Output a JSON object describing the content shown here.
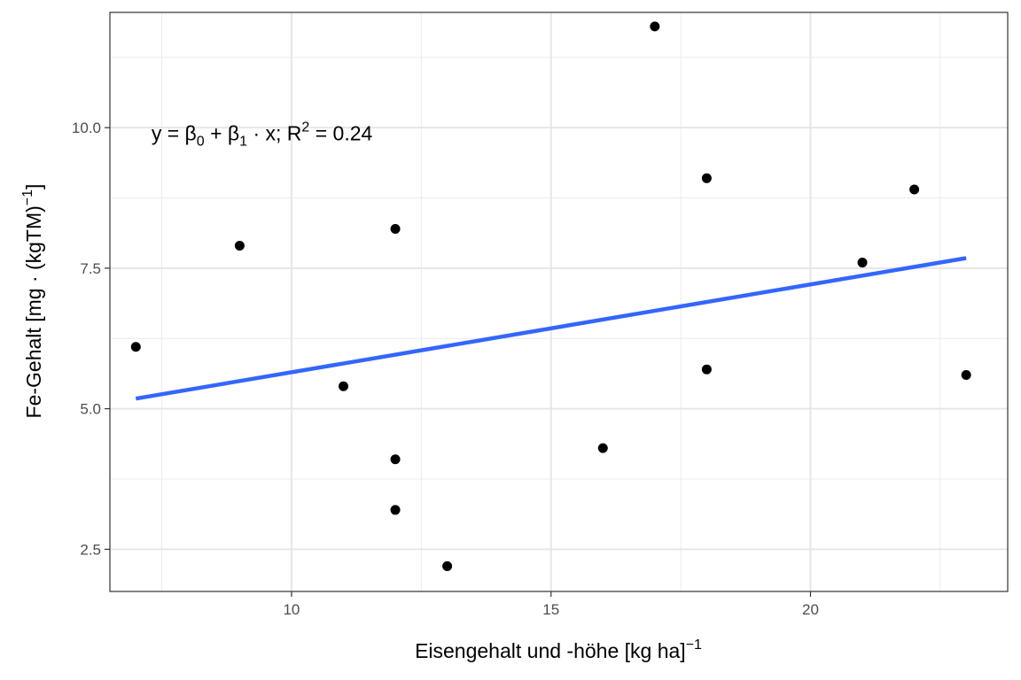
{
  "chart_data": {
    "type": "scatter",
    "xlabel_main": "Eisengehalt und -höhe [kg ha]",
    "xlabel_sup": "−1",
    "ylabel_main": "Fe-Gehalt [mg · (kgTM)",
    "ylabel_sup": "−1",
    "ylabel_end": "]",
    "annotation": {
      "lhs": "y = β",
      "sub0": "0",
      "mid": " + β",
      "sub1": "1",
      "rhs": " · x;  R",
      "sup": "2",
      "tail": " = 0.24",
      "x": 7.3,
      "y": 9.9
    },
    "xlim": [
      6.5,
      23.8
    ],
    "ylim": [
      1.75,
      12.05
    ],
    "x_ticks": [
      10,
      15,
      20
    ],
    "x_tick_labels": [
      "10",
      "15",
      "20"
    ],
    "y_ticks": [
      2.5,
      5.0,
      7.5,
      10.0
    ],
    "y_tick_labels": [
      "2.5",
      "5.0",
      "7.5",
      "10.0"
    ],
    "grid": true,
    "points": [
      {
        "x": 7,
        "y": 6.1
      },
      {
        "x": 9,
        "y": 7.9
      },
      {
        "x": 11,
        "y": 5.4
      },
      {
        "x": 12,
        "y": 8.2
      },
      {
        "x": 12,
        "y": 4.1
      },
      {
        "x": 12,
        "y": 3.2
      },
      {
        "x": 13,
        "y": 2.2
      },
      {
        "x": 16,
        "y": 4.3
      },
      {
        "x": 17,
        "y": 11.8
      },
      {
        "x": 18,
        "y": 9.1
      },
      {
        "x": 18,
        "y": 5.7
      },
      {
        "x": 21,
        "y": 7.6
      },
      {
        "x": 22,
        "y": 8.9
      },
      {
        "x": 23,
        "y": 5.6
      }
    ],
    "fit_line": {
      "x": [
        7,
        23
      ],
      "y": [
        5.18,
        7.68
      ],
      "color": "#3366ff"
    },
    "point_color": "#000000"
  }
}
